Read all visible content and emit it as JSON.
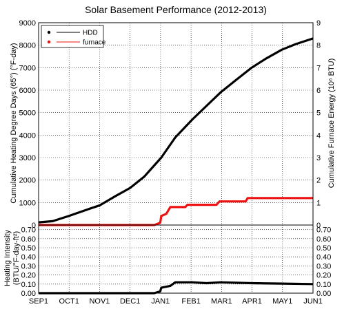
{
  "chart_data": [
    {
      "type": "line",
      "title": "Solar Basement Performance (2012-2013)",
      "ylabel": "Cumulative Heating Degree Days (65°) (°F-day)",
      "y2label": "Cumulative Furnace Energy (10⁶ BTU)",
      "ylim": [
        0,
        9000
      ],
      "y2lim": [
        0,
        9
      ],
      "yticks": [
        "0",
        "1000",
        "2000",
        "3000",
        "4000",
        "5000",
        "6000",
        "7000",
        "8000",
        "9000"
      ],
      "y2ticks": [
        "0",
        "1",
        "2",
        "3",
        "4",
        "5",
        "6",
        "7",
        "8",
        "9"
      ],
      "xlim": [
        "2012-09-01",
        "2013-06-01"
      ],
      "grid": true,
      "legend_position": "top-left",
      "series": [
        {
          "name": "HDD",
          "color": "#000000",
          "axis": "left",
          "points": [
            [
              "2012-09-01",
              120
            ],
            [
              "2012-09-15",
              170
            ],
            [
              "2012-10-01",
              400
            ],
            [
              "2012-10-15",
              620
            ],
            [
              "2012-11-01",
              880
            ],
            [
              "2012-11-15",
              1250
            ],
            [
              "2012-12-01",
              1650
            ],
            [
              "2012-12-15",
              2150
            ],
            [
              "2013-01-01",
              3000
            ],
            [
              "2013-01-15",
              3900
            ],
            [
              "2013-02-01",
              4700
            ],
            [
              "2013-02-15",
              5300
            ],
            [
              "2013-03-01",
              5900
            ],
            [
              "2013-03-15",
              6400
            ],
            [
              "2013-04-01",
              7000
            ],
            [
              "2013-04-15",
              7400
            ],
            [
              "2013-05-01",
              7800
            ],
            [
              "2013-05-15",
              8050
            ],
            [
              "2013-06-01",
              8300
            ]
          ]
        },
        {
          "name": "furnace",
          "color": "#ee1111",
          "axis": "right",
          "points": [
            [
              "2012-09-01",
              0
            ],
            [
              "2012-12-25",
              0
            ],
            [
              "2012-12-31",
              0.1
            ],
            [
              "2013-01-01",
              0.4
            ],
            [
              "2013-01-06",
              0.5
            ],
            [
              "2013-01-10",
              0.8
            ],
            [
              "2013-01-25",
              0.8
            ],
            [
              "2013-01-27",
              0.9
            ],
            [
              "2013-02-25",
              0.9
            ],
            [
              "2013-02-28",
              1.05
            ],
            [
              "2013-03-26",
              1.05
            ],
            [
              "2013-03-28",
              1.2
            ],
            [
              "2013-06-01",
              1.2
            ]
          ]
        }
      ]
    },
    {
      "type": "line",
      "ylabel": "Heating Intensity (BTU/°F-day-ft²)",
      "ylim": [
        0,
        0.75
      ],
      "yticks": [
        "0.00",
        "0.10",
        "0.20",
        "0.30",
        "0.40",
        "0.50",
        "0.60",
        "0.70"
      ],
      "y2ticks": [
        "0.00",
        "0.10",
        "0.20",
        "0.30",
        "0.40",
        "0.50",
        "0.60",
        "0.70"
      ],
      "xlim": [
        "2012-09-01",
        "2013-06-01"
      ],
      "xticks": [
        "SEP1",
        "OCT1",
        "NOV1",
        "DEC1",
        "JAN1",
        "FEB1",
        "MAR1",
        "APR1",
        "MAY1",
        "JUN1"
      ],
      "grid": true,
      "series": [
        {
          "color": "#000000",
          "points": [
            [
              "2012-09-01",
              0
            ],
            [
              "2012-12-25",
              0
            ],
            [
              "2012-12-31",
              0.02
            ],
            [
              "2013-01-01",
              0.06
            ],
            [
              "2013-01-10",
              0.08
            ],
            [
              "2013-01-15",
              0.12
            ],
            [
              "2013-02-01",
              0.12
            ],
            [
              "2013-02-15",
              0.11
            ],
            [
              "2013-03-01",
              0.12
            ],
            [
              "2013-04-01",
              0.11
            ],
            [
              "2013-05-01",
              0.105
            ],
            [
              "2013-06-01",
              0.1
            ]
          ]
        }
      ]
    }
  ]
}
